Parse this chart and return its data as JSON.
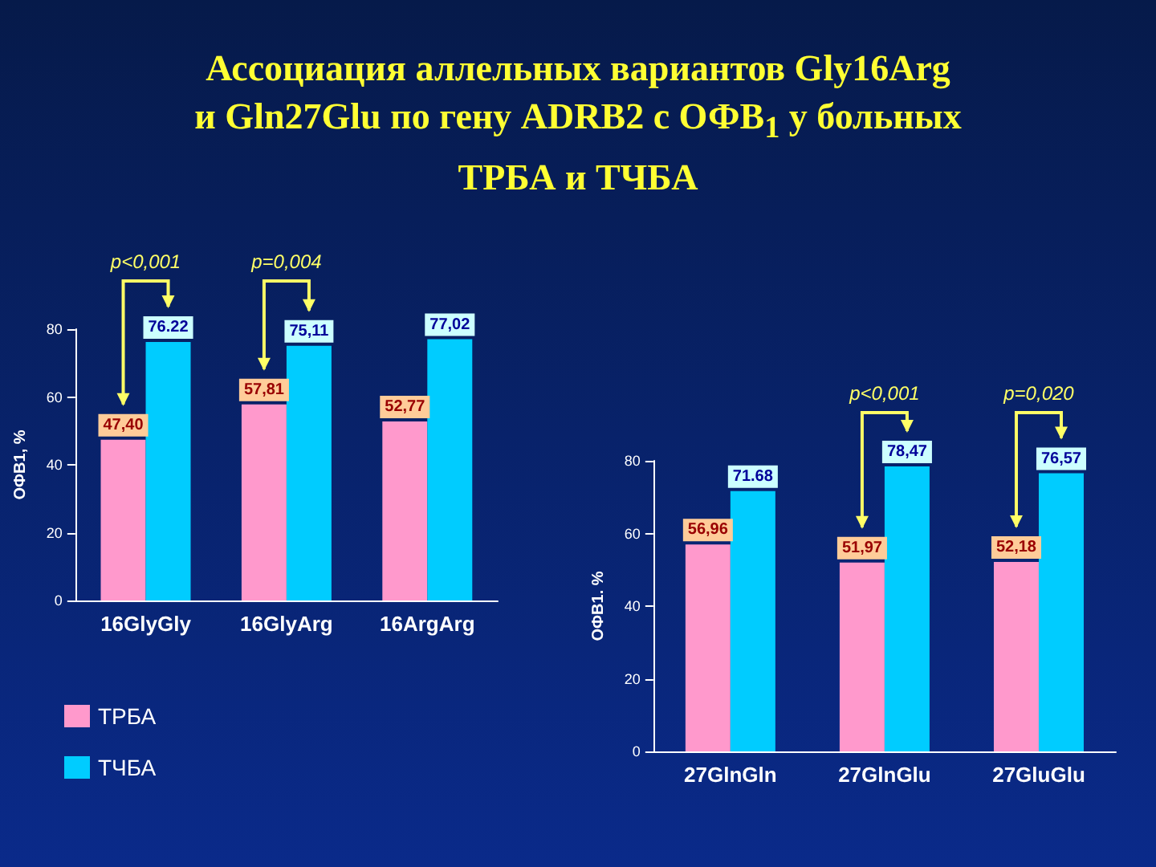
{
  "chart_data": [
    {
      "type": "bar",
      "title": "Ассоциация аллельных вариантов Gly16Arg и  Gln27Glu по гену ADRB2  с ОФВ$_{1}$ у больных ТРБА и ТЧБА",
      "ylabel": "ОФВ1, %",
      "categories": [
        "16GlyGly",
        "16GlyArg",
        "16ArgArg"
      ],
      "series": [
        {
          "name": "ТРБА",
          "color": "#ff99cc",
          "values": [
            47.4,
            57.81,
            52.77
          ],
          "value_labels": [
            "47,40",
            "57,81",
            "52,77"
          ]
        },
        {
          "name": "ТЧБА",
          "color": "#00ccff",
          "values": [
            76.22,
            75.11,
            77.02
          ],
          "value_labels": [
            "76.22",
            "75,11",
            "77,02"
          ]
        }
      ],
      "ylim": [
        0,
        80
      ],
      "yticks": [
        0,
        20,
        40,
        60,
        80
      ],
      "legend": "bottom left",
      "annotations": [
        "p<0,001",
        "p=0,004"
      ]
    },
    {
      "type": "bar",
      "ylabel": "ОФВ1. %",
      "categories": [
        "27GlnGln",
        "27GlnGlu",
        "27GluGlu"
      ],
      "series": [
        {
          "color": "#ff99cc",
          "values": [
            56.96,
            51.97,
            52.18
          ],
          "value_labels": [
            "56,96",
            "51,97",
            "52,18"
          ]
        },
        {
          "color": "#00ccff",
          "values": [
            71.68,
            78.47,
            76.57
          ],
          "value_labels": [
            "71.68",
            "78,47",
            "76,57"
          ]
        }
      ],
      "ylim": [
        0,
        80
      ],
      "yticks": [
        0,
        20,
        40,
        60,
        80
      ],
      "legend": false,
      "annotations": [
        "p<0,001",
        "p=0,020"
      ]
    }
  ]
}
